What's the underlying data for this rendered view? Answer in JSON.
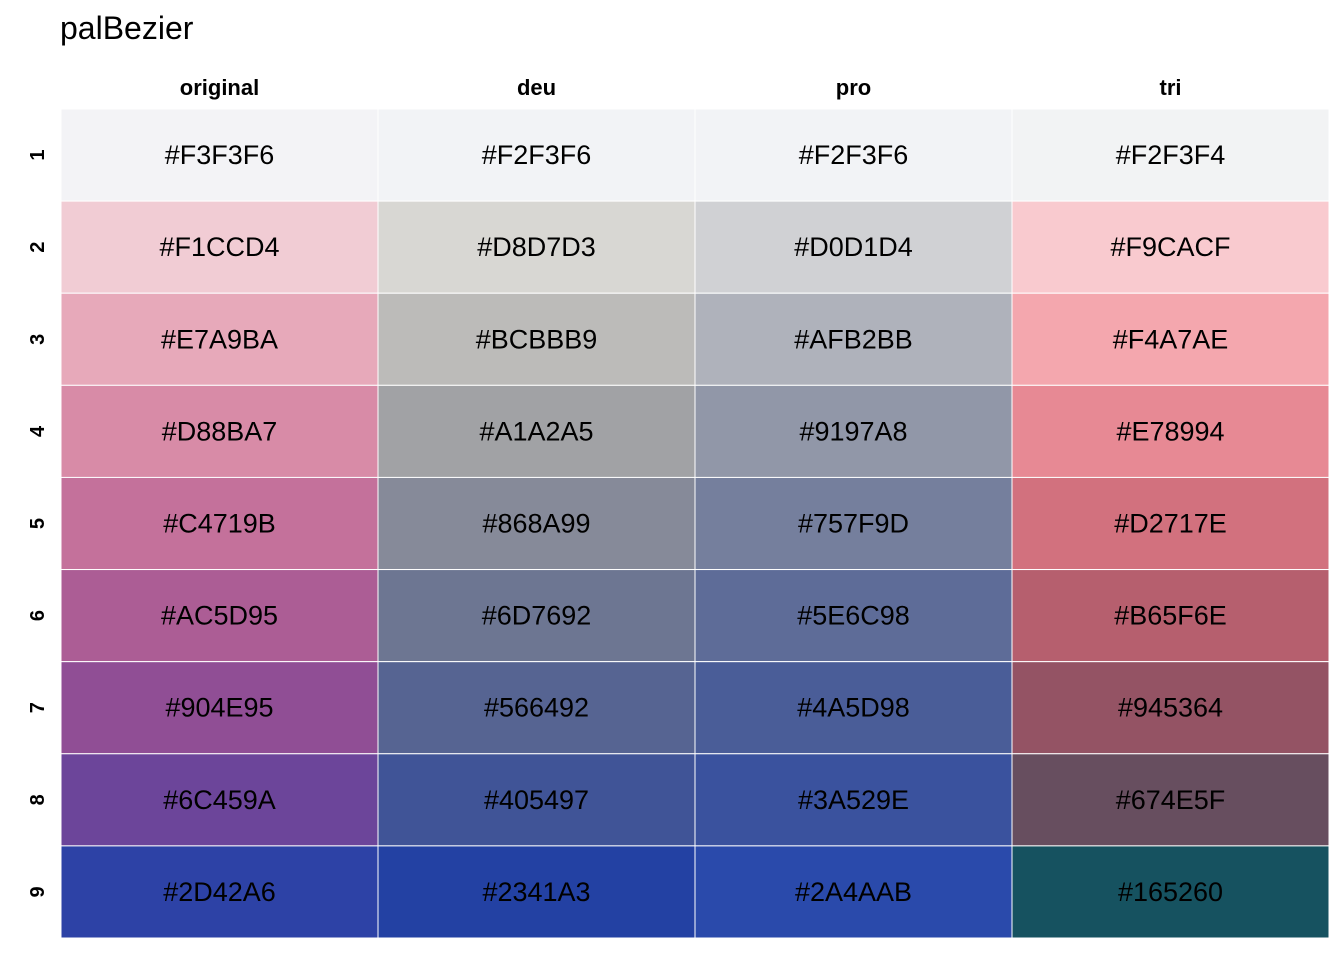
{
  "chart_data": {
    "type": "table",
    "title": "palBezier",
    "columns": [
      "original",
      "deu",
      "pro",
      "tri"
    ],
    "rows": [
      "1",
      "2",
      "3",
      "4",
      "5",
      "6",
      "7",
      "8",
      "9"
    ],
    "cells": [
      [
        "#F3F3F6",
        "#F2F3F6",
        "#F2F3F6",
        "#F2F3F4"
      ],
      [
        "#F1CCD4",
        "#D8D7D3",
        "#D0D1D4",
        "#F9CACF"
      ],
      [
        "#E7A9BA",
        "#BCBBB9",
        "#AFB2BB",
        "#F4A7AE"
      ],
      [
        "#D88BA7",
        "#A1A2A5",
        "#9197A8",
        "#E78994"
      ],
      [
        "#C4719B",
        "#868A99",
        "#757F9D",
        "#D2717E"
      ],
      [
        "#AC5D95",
        "#6D7692",
        "#5E6C98",
        "#B65F6E"
      ],
      [
        "#904E95",
        "#566492",
        "#4A5D98",
        "#945364"
      ],
      [
        "#6C459A",
        "#405497",
        "#3A529E",
        "#674E5F"
      ],
      [
        "#2D42A6",
        "#2341A3",
        "#2A4AAB",
        "#165260"
      ]
    ]
  }
}
